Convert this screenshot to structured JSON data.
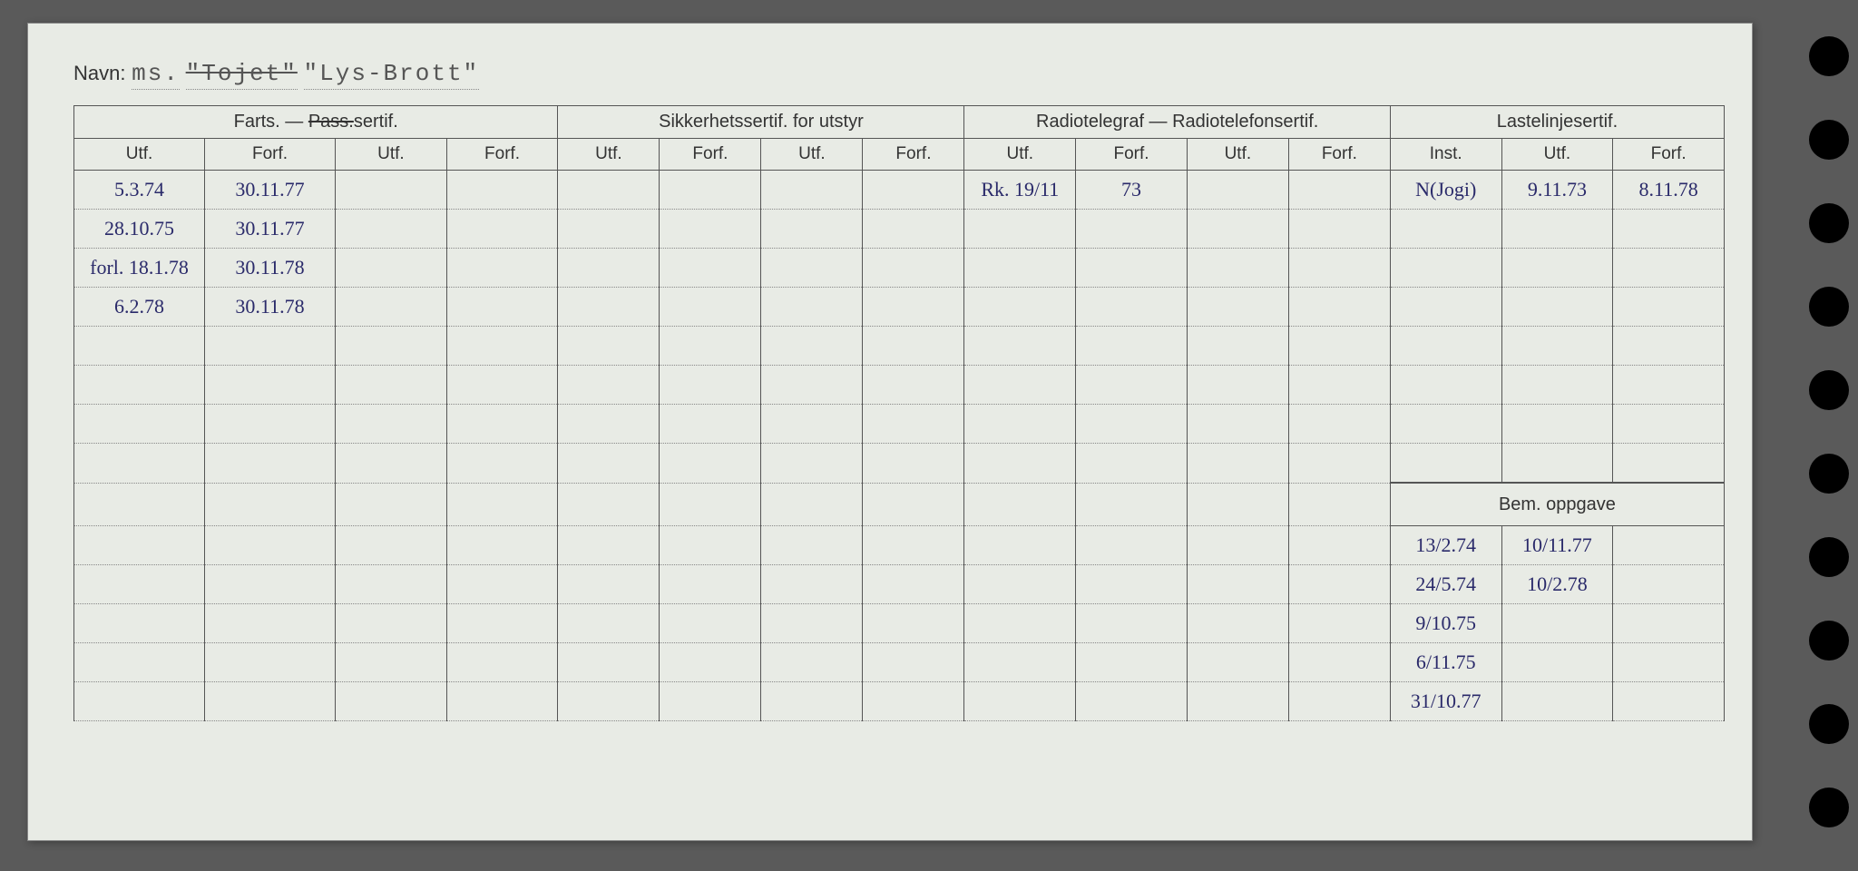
{
  "navn": {
    "label": "Navn:",
    "prefix": "ms.",
    "strike_name": "\"Tojet\"",
    "name": "\"Lys-Brott\""
  },
  "headers": {
    "group1": "Farts. — Pass.sertif.",
    "group1_display_pre": "Farts. — ",
    "group1_pass": "Pass.",
    "group1_suffix": "sertif.",
    "group2": "Sikkerhetssertif. for utstyr",
    "group3": "Radiotelegraf — Radiotelefonsertif.",
    "group4": "Lastelinjesertif.",
    "utf": "Utf.",
    "forf": "Forf.",
    "inst": "Inst.",
    "bem": "Bem. oppgave"
  },
  "rows": [
    {
      "c1": "5.3.74",
      "c2": "30.11.77",
      "c9": "Rk. 19/11",
      "c10": "73",
      "c13": "N(Jogi)",
      "c14": "9.11.73",
      "c15": "8.11.78"
    },
    {
      "c1": "28.10.75",
      "c2": "30.11.77"
    },
    {
      "c1": "forl. 18.1.78",
      "c2": "30.11.78"
    },
    {
      "c1": "6.2.78",
      "c2": "30.11.78"
    },
    {},
    {},
    {},
    {},
    {}
  ],
  "bem_rows": [
    {
      "a": "13/2.74",
      "b": "10/11.77"
    },
    {
      "a": "24/5.74",
      "b": "10/2.78"
    },
    {
      "a": "9/10.75",
      "b": ""
    },
    {
      "a": "6/11.75",
      "b": ""
    },
    {
      "a": "31/10.77",
      "b": ""
    }
  ],
  "colors": {
    "paper": "#e8ebe5",
    "ink_print": "#333333",
    "ink_hand": "#2a2a6a",
    "border": "#555555",
    "bg": "#5a5a5a"
  }
}
